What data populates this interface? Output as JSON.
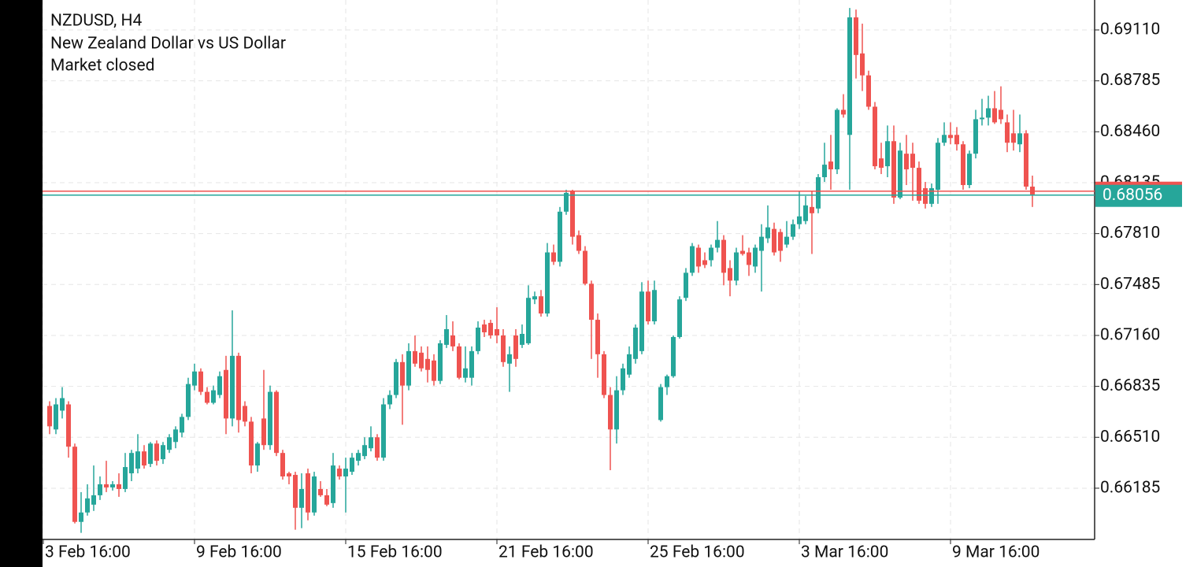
{
  "chart_data": {
    "type": "candlestick",
    "title": "NZDUSD, H4",
    "subtitle": "New Zealand Dollar vs US Dollar",
    "status": "Market closed",
    "up_color": "#26a69a",
    "down_color": "#ef5350",
    "grid": true,
    "ylim": [
      0.65858,
      0.69301
    ],
    "yticks": [
      {
        "value": 0.6911,
        "label": "0.69110"
      },
      {
        "value": 0.68785,
        "label": "0.68785"
      },
      {
        "value": 0.6846,
        "label": "0.68460"
      },
      {
        "value": 0.68135,
        "label": "0.68135"
      },
      {
        "value": 0.6781,
        "label": "0.67810"
      },
      {
        "value": 0.67485,
        "label": "0.67485"
      },
      {
        "value": 0.6716,
        "label": "0.67160"
      },
      {
        "value": 0.66835,
        "label": "0.66835"
      },
      {
        "value": 0.6651,
        "label": "0.66510"
      },
      {
        "value": 0.66185,
        "label": "0.66185"
      }
    ],
    "xtick_labels": [
      "3 Feb 16:00",
      "9 Feb 16:00",
      "15 Feb 16:00",
      "21 Feb 16:00",
      "25 Feb 16:00",
      "3 Mar 16:00",
      "9 Mar 16:00"
    ],
    "current_price": {
      "value": 0.68056,
      "label": "0.68056"
    },
    "candles": [
      [
        0.6671,
        0.6674,
        0.6653,
        0.6658
      ],
      [
        0.6656,
        0.6676,
        0.6653,
        0.6672
      ],
      [
        0.6668,
        0.6683,
        0.6663,
        0.6676
      ],
      [
        0.6672,
        0.6674,
        0.6638,
        0.6645
      ],
      [
        0.6645,
        0.6647,
        0.6596,
        0.6597
      ],
      [
        0.6597,
        0.6616,
        0.659,
        0.6603
      ],
      [
        0.6603,
        0.6621,
        0.6601,
        0.6612
      ],
      [
        0.6608,
        0.6633,
        0.6604,
        0.6614
      ],
      [
        0.6614,
        0.6626,
        0.6611,
        0.6621
      ],
      [
        0.6621,
        0.6636,
        0.6616,
        0.6619
      ],
      [
        0.6619,
        0.6623,
        0.6617,
        0.6621
      ],
      [
        0.6621,
        0.6628,
        0.6613,
        0.6618
      ],
      [
        0.6618,
        0.6641,
        0.6616,
        0.6632
      ],
      [
        0.6628,
        0.6643,
        0.6623,
        0.6641
      ],
      [
        0.6631,
        0.6653,
        0.6628,
        0.6642
      ],
      [
        0.6642,
        0.6646,
        0.6631,
        0.6633
      ],
      [
        0.6634,
        0.6648,
        0.6632,
        0.6647
      ],
      [
        0.6647,
        0.6649,
        0.6633,
        0.6636
      ],
      [
        0.6637,
        0.6648,
        0.6634,
        0.6646
      ],
      [
        0.6643,
        0.6653,
        0.6641,
        0.6651
      ],
      [
        0.6648,
        0.6658,
        0.6644,
        0.6656
      ],
      [
        0.6654,
        0.6666,
        0.6651,
        0.6664
      ],
      [
        0.6664,
        0.6689,
        0.6662,
        0.6685
      ],
      [
        0.6684,
        0.6698,
        0.6681,
        0.6693
      ],
      [
        0.6693,
        0.6695,
        0.6678,
        0.668
      ],
      [
        0.668,
        0.6683,
        0.6672,
        0.6673
      ],
      [
        0.6673,
        0.6684,
        0.6672,
        0.6681
      ],
      [
        0.6678,
        0.6693,
        0.6676,
        0.669
      ],
      [
        0.6694,
        0.6703,
        0.6653,
        0.6663
      ],
      [
        0.6663,
        0.6732,
        0.6658,
        0.6703
      ],
      [
        0.6703,
        0.6705,
        0.6654,
        0.6662
      ],
      [
        0.6671,
        0.6674,
        0.6658,
        0.6661
      ],
      [
        0.6661,
        0.6664,
        0.6628,
        0.6633
      ],
      [
        0.6633,
        0.6648,
        0.6629,
        0.6647
      ],
      [
        0.6663,
        0.6694,
        0.6643,
        0.6646
      ],
      [
        0.6646,
        0.6684,
        0.6643,
        0.668
      ],
      [
        0.668,
        0.6681,
        0.6639,
        0.6641
      ],
      [
        0.6641,
        0.6643,
        0.6624,
        0.6626
      ],
      [
        0.6628,
        0.6629,
        0.6621,
        0.6626
      ],
      [
        0.6627,
        0.6629,
        0.6592,
        0.6606
      ],
      [
        0.6606,
        0.6628,
        0.6593,
        0.6618
      ],
      [
        0.6628,
        0.6631,
        0.6598,
        0.6603
      ],
      [
        0.6603,
        0.6629,
        0.6601,
        0.6626
      ],
      [
        0.6618,
        0.6623,
        0.6613,
        0.6614
      ],
      [
        0.6614,
        0.6618,
        0.6607,
        0.6608
      ],
      [
        0.6609,
        0.6641,
        0.6606,
        0.6633
      ],
      [
        0.6631,
        0.6633,
        0.6624,
        0.6626
      ],
      [
        0.6626,
        0.6638,
        0.6603,
        0.6631
      ],
      [
        0.6629,
        0.6641,
        0.6627,
        0.6638
      ],
      [
        0.6636,
        0.6643,
        0.6633,
        0.6641
      ],
      [
        0.6639,
        0.6651,
        0.6637,
        0.6646
      ],
      [
        0.6644,
        0.6658,
        0.6642,
        0.6651
      ],
      [
        0.6651,
        0.6653,
        0.6636,
        0.6638
      ],
      [
        0.6638,
        0.6676,
        0.6636,
        0.6672
      ],
      [
        0.6672,
        0.6681,
        0.6669,
        0.6678
      ],
      [
        0.6678,
        0.6701,
        0.6676,
        0.6699
      ],
      [
        0.6699,
        0.6704,
        0.6659,
        0.6684
      ],
      [
        0.6684,
        0.6711,
        0.6681,
        0.6706
      ],
      [
        0.6706,
        0.6716,
        0.6696,
        0.6698
      ],
      [
        0.6705,
        0.6709,
        0.6693,
        0.6695
      ],
      [
        0.6701,
        0.6709,
        0.6686,
        0.6694
      ],
      [
        0.67,
        0.6704,
        0.6684,
        0.6687
      ],
      [
        0.6687,
        0.6713,
        0.6685,
        0.6711
      ],
      [
        0.671,
        0.6729,
        0.6708,
        0.672
      ],
      [
        0.6716,
        0.6725,
        0.6706,
        0.6709
      ],
      [
        0.6709,
        0.6711,
        0.6688,
        0.6689
      ],
      [
        0.6689,
        0.6709,
        0.6686,
        0.6695
      ],
      [
        0.6689,
        0.6709,
        0.6684,
        0.6706
      ],
      [
        0.6706,
        0.6725,
        0.6704,
        0.6721
      ],
      [
        0.6723,
        0.6726,
        0.6715,
        0.6718
      ],
      [
        0.6724,
        0.6726,
        0.6714,
        0.6716
      ],
      [
        0.672,
        0.6734,
        0.6711,
        0.6716
      ],
      [
        0.6716,
        0.672,
        0.6696,
        0.6699
      ],
      [
        0.6698,
        0.6709,
        0.668,
        0.6704
      ],
      [
        0.6716,
        0.672,
        0.6696,
        0.6701
      ],
      [
        0.671,
        0.6723,
        0.6708,
        0.6717
      ],
      [
        0.6711,
        0.6748,
        0.671,
        0.674
      ],
      [
        0.6739,
        0.6744,
        0.6736,
        0.6741
      ],
      [
        0.6741,
        0.6745,
        0.6728,
        0.673
      ],
      [
        0.673,
        0.6775,
        0.6728,
        0.6769
      ],
      [
        0.6769,
        0.6774,
        0.6761,
        0.6763
      ],
      [
        0.6763,
        0.6798,
        0.676,
        0.6795
      ],
      [
        0.6795,
        0.6809,
        0.6793,
        0.6807
      ],
      [
        0.6808,
        0.6809,
        0.6774,
        0.6779
      ],
      [
        0.678,
        0.6783,
        0.6768,
        0.677
      ],
      [
        0.677,
        0.6773,
        0.6748,
        0.6749
      ],
      [
        0.6749,
        0.6751,
        0.6701,
        0.6726
      ],
      [
        0.6726,
        0.673,
        0.6689,
        0.6704
      ],
      [
        0.6704,
        0.6706,
        0.6676,
        0.6678
      ],
      [
        0.6678,
        0.6683,
        0.663,
        0.6656
      ],
      [
        0.6656,
        0.669,
        0.6647,
        0.6681
      ],
      [
        0.6681,
        0.6698,
        0.6678,
        0.6695
      ],
      [
        0.6691,
        0.6709,
        0.6689,
        0.6704
      ],
      [
        0.6701,
        0.6723,
        0.6698,
        0.6721
      ],
      [
        0.6706,
        0.675,
        0.6704,
        0.6744
      ],
      [
        0.6744,
        0.6751,
        0.6723,
        0.6725
      ],
      [
        0.6725,
        0.6751,
        0.6723,
        0.6745
      ],
      [
        0.6662,
        0.6685,
        0.6661,
        0.6683
      ],
      [
        0.6683,
        0.6691,
        0.6678,
        0.669
      ],
      [
        0.669,
        0.6716,
        0.6689,
        0.6715
      ],
      [
        0.6715,
        0.6741,
        0.6714,
        0.6739
      ],
      [
        0.674,
        0.6759,
        0.6738,
        0.6756
      ],
      [
        0.6756,
        0.6775,
        0.6754,
        0.6773
      ],
      [
        0.6772,
        0.6774,
        0.6756,
        0.676
      ],
      [
        0.6764,
        0.6769,
        0.6759,
        0.6761
      ],
      [
        0.6764,
        0.6774,
        0.676,
        0.6772
      ],
      [
        0.6772,
        0.6789,
        0.6769,
        0.6777
      ],
      [
        0.6777,
        0.678,
        0.6748,
        0.6756
      ],
      [
        0.6759,
        0.6764,
        0.6741,
        0.6751
      ],
      [
        0.6751,
        0.6772,
        0.6748,
        0.6769
      ],
      [
        0.677,
        0.678,
        0.6767,
        0.6768
      ],
      [
        0.6769,
        0.6772,
        0.6754,
        0.6761
      ],
      [
        0.676,
        0.6774,
        0.6756,
        0.6772
      ],
      [
        0.677,
        0.6787,
        0.6744,
        0.6779
      ],
      [
        0.6778,
        0.6799,
        0.6775,
        0.6785
      ],
      [
        0.6784,
        0.6788,
        0.6767,
        0.6769
      ],
      [
        0.6782,
        0.6784,
        0.6763,
        0.677
      ],
      [
        0.6774,
        0.6789,
        0.6772,
        0.6779
      ],
      [
        0.6779,
        0.679,
        0.6777,
        0.6787
      ],
      [
        0.6787,
        0.6808,
        0.6784,
        0.6792
      ],
      [
        0.6789,
        0.6805,
        0.6787,
        0.6799
      ],
      [
        0.6798,
        0.6808,
        0.6768,
        0.6794
      ],
      [
        0.6797,
        0.6819,
        0.6794,
        0.6817
      ],
      [
        0.6817,
        0.6839,
        0.6814,
        0.6825
      ],
      [
        0.6827,
        0.6844,
        0.6809,
        0.6822
      ],
      [
        0.6822,
        0.6861,
        0.6819,
        0.686
      ],
      [
        0.686,
        0.687,
        0.6855,
        0.6857
      ],
      [
        0.6844,
        0.6925,
        0.6809,
        0.6919
      ],
      [
        0.6919,
        0.6924,
        0.688,
        0.6895
      ],
      [
        0.6896,
        0.6915,
        0.6872,
        0.6882
      ],
      [
        0.6882,
        0.6885,
        0.686,
        0.6862
      ],
      [
        0.6862,
        0.6865,
        0.6822,
        0.6824
      ],
      [
        0.6829,
        0.6839,
        0.6819,
        0.6823
      ],
      [
        0.6824,
        0.685,
        0.6817,
        0.684
      ],
      [
        0.684,
        0.685,
        0.68,
        0.6804
      ],
      [
        0.6804,
        0.6839,
        0.6803,
        0.6834
      ],
      [
        0.6832,
        0.6844,
        0.6812,
        0.6822
      ],
      [
        0.6832,
        0.6839,
        0.6802,
        0.6823
      ],
      [
        0.6823,
        0.6827,
        0.68,
        0.6802
      ],
      [
        0.681,
        0.6814,
        0.6797,
        0.68
      ],
      [
        0.68,
        0.6813,
        0.6798,
        0.681
      ],
      [
        0.6809,
        0.6842,
        0.68,
        0.6839
      ],
      [
        0.6839,
        0.6852,
        0.6837,
        0.6844
      ],
      [
        0.6844,
        0.6852,
        0.6838,
        0.6842
      ],
      [
        0.6844,
        0.6849,
        0.6834,
        0.6838
      ],
      [
        0.6838,
        0.684,
        0.6809,
        0.6812
      ],
      [
        0.6812,
        0.6834,
        0.681,
        0.6832
      ],
      [
        0.6832,
        0.686,
        0.6829,
        0.6854
      ],
      [
        0.6854,
        0.6867,
        0.685,
        0.6855
      ],
      [
        0.6855,
        0.6869,
        0.685,
        0.6861
      ],
      [
        0.6861,
        0.6872,
        0.6851,
        0.6852
      ],
      [
        0.686,
        0.6875,
        0.6851,
        0.6854
      ],
      [
        0.6852,
        0.6857,
        0.6833,
        0.6839
      ],
      [
        0.6845,
        0.686,
        0.6834,
        0.6839
      ],
      [
        0.6838,
        0.6857,
        0.6833,
        0.6845
      ],
      [
        0.6845,
        0.6847,
        0.6809,
        0.6811
      ],
      [
        0.6811,
        0.6818,
        0.6798,
        0.6806
      ]
    ]
  }
}
